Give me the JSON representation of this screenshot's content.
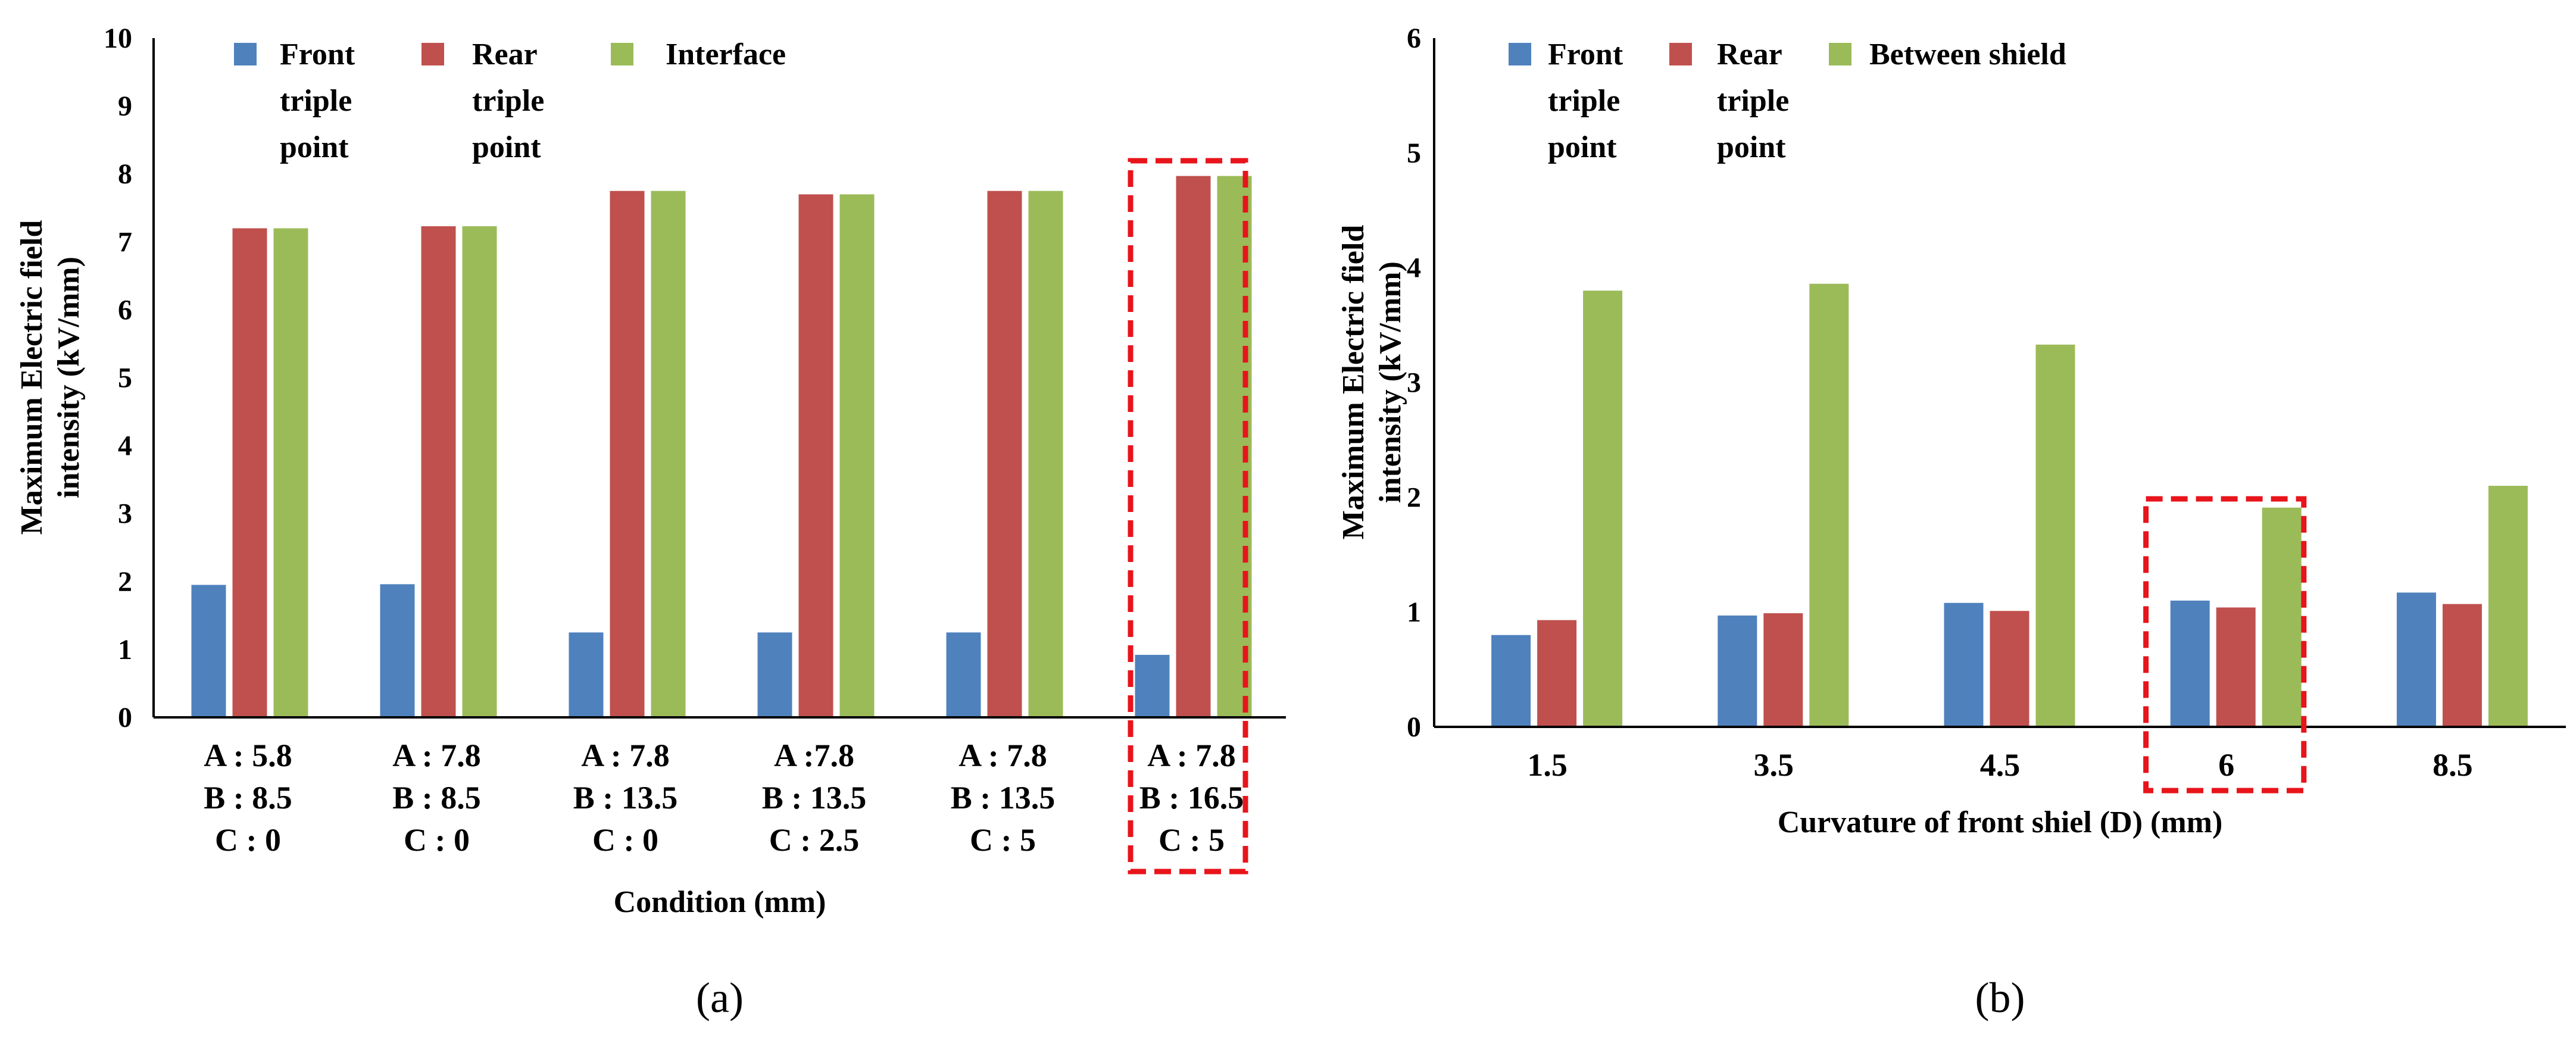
{
  "colors": {
    "front": "#4F81BD",
    "rear": "#C0504D",
    "third": "#9BBB59",
    "highlight": "#E8141B",
    "axis": "#000000"
  },
  "chart_data": [
    {
      "type": "bar",
      "panel_label": "(a)",
      "title": "",
      "xlabel": "Condition (mm)",
      "ylabel": [
        "Maximum Electric field",
        "intensity (kV/mm)"
      ],
      "ylim": [
        0,
        10
      ],
      "yticks": [
        "0",
        "1",
        "2",
        "3",
        "4",
        "5",
        "6",
        "7",
        "8",
        "9",
        "10"
      ],
      "grid": false,
      "legend_position": "top-left",
      "categories": [
        [
          "A : 5.8",
          "B : 8.5",
          "C : 0"
        ],
        [
          "A : 7.8",
          "B : 8.5",
          "C : 0"
        ],
        [
          "A : 7.8",
          "B : 13.5",
          "C : 0"
        ],
        [
          "A :7.8",
          "B : 13.5",
          "C : 2.5"
        ],
        [
          "A : 7.8",
          "B : 13.5",
          "C : 5"
        ],
        [
          "A : 7.8",
          "B : 16.5",
          "C : 5"
        ]
      ],
      "series": [
        {
          "name": [
            "Front",
            "triple",
            "point"
          ],
          "color_key": "front",
          "values": [
            1.95,
            1.96,
            1.25,
            1.25,
            1.25,
            0.92
          ]
        },
        {
          "name": [
            "Rear",
            "triple",
            "point"
          ],
          "color_key": "rear",
          "values": [
            7.2,
            7.23,
            7.75,
            7.7,
            7.75,
            7.97
          ]
        },
        {
          "name": [
            "Interface"
          ],
          "color_key": "third",
          "values": [
            7.2,
            7.23,
            7.75,
            7.7,
            7.75,
            7.97
          ]
        }
      ],
      "highlight_index": 5
    },
    {
      "type": "bar",
      "panel_label": "(b)",
      "title": "",
      "xlabel": "Curvature of front shiel (D) (mm)",
      "ylabel": [
        "Maximum Electric field",
        "intensity (kV/mm)"
      ],
      "ylim": [
        0,
        6
      ],
      "yticks": [
        "0",
        "1",
        "2",
        "3",
        "4",
        "5",
        "6"
      ],
      "grid": false,
      "legend_position": "top-left",
      "categories": [
        [
          "1.5"
        ],
        [
          "3.5"
        ],
        [
          "4.5"
        ],
        [
          "6"
        ],
        [
          "8.5"
        ]
      ],
      "series": [
        {
          "name": [
            "Front",
            "triple",
            "point"
          ],
          "color_key": "front",
          "values": [
            0.8,
            0.97,
            1.08,
            1.1,
            1.17
          ]
        },
        {
          "name": [
            "Rear",
            "triple",
            "point"
          ],
          "color_key": "rear",
          "values": [
            0.93,
            0.99,
            1.01,
            1.04,
            1.07
          ]
        },
        {
          "name": [
            "Between shield"
          ],
          "color_key": "third",
          "values": [
            3.8,
            3.86,
            3.33,
            1.91,
            2.1
          ]
        }
      ],
      "highlight_index": 3
    }
  ]
}
